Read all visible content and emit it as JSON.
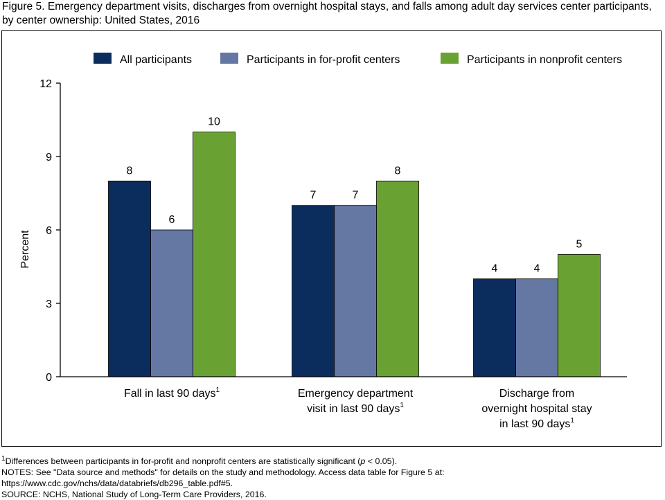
{
  "title": "Figure 5. Emergency department visits, discharges from overnight hospital stays, and falls among adult day services center participants, by center ownership: United States, 2016",
  "chart_data": {
    "type": "bar",
    "ylabel": "Percent",
    "ylim": [
      0,
      12
    ],
    "yticks": [
      0,
      3,
      6,
      9,
      12
    ],
    "grid": false,
    "legend_position": "top",
    "categories": [
      {
        "lines": [
          "Fall in last 90 days"
        ],
        "footnote": "1"
      },
      {
        "lines": [
          "Emergency department",
          "visit in last 90 days"
        ],
        "footnote": "1"
      },
      {
        "lines": [
          "Discharge from",
          "overnight hospital stay",
          "in last 90 days"
        ],
        "footnote": "1"
      }
    ],
    "series": [
      {
        "name": "All participants",
        "color": "#0b2d5e",
        "values": [
          8,
          7,
          4
        ]
      },
      {
        "name": "Participants in for-profit centers",
        "color": "#6577a3",
        "values": [
          6,
          7,
          4
        ]
      },
      {
        "name": "Participants in nonprofit centers",
        "color": "#69a233",
        "values": [
          10,
          8,
          5
        ]
      }
    ]
  },
  "notes": {
    "footnote_marker": "1",
    "footnote_text_a": "Differences between participants in for-profit and nonprofit centers are statistically significant (",
    "footnote_p": "p",
    "footnote_text_b": " < 0.05).",
    "line2": "NOTES: See \"Data source and methods\" for details on the study and methodology. Access data table for Figure 5 at:",
    "line3": "https://www.cdc.gov/nchs/data/databriefs/db296_table.pdf#5.",
    "line4": "SOURCE: NCHS, National Study of Long-Term Care Providers, 2016."
  }
}
